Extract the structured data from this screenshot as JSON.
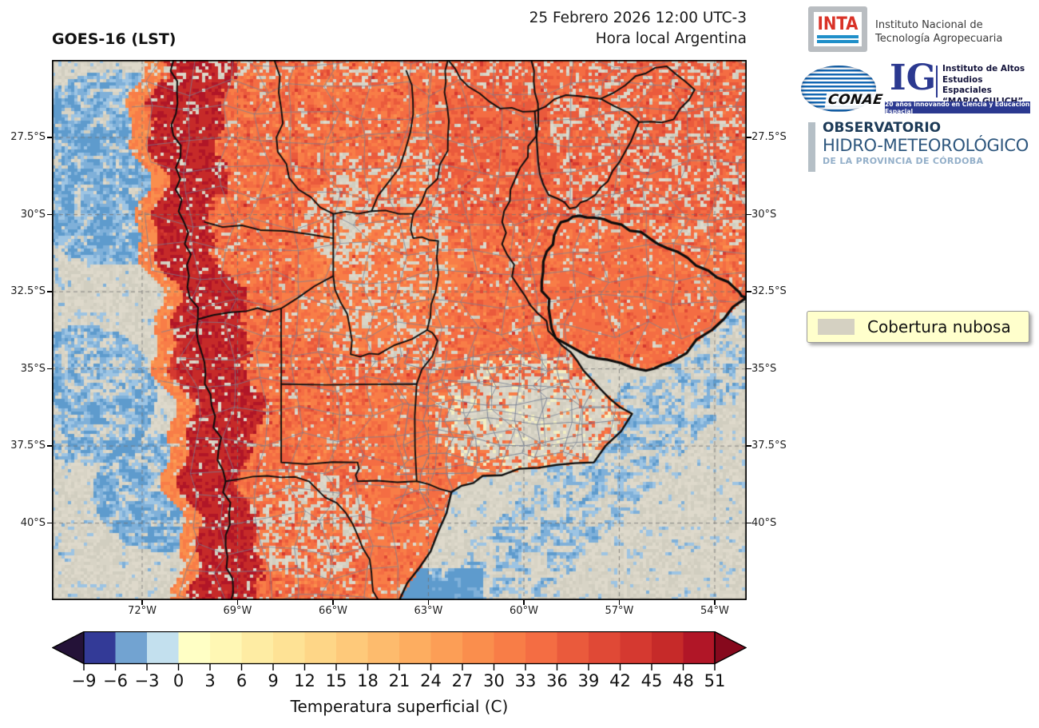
{
  "header": {
    "map_title": "GOES-16 (LST)",
    "datetime_line1": "25 Febrero 2026 12:00 UTC-3",
    "datetime_line2": "Hora local Argentina"
  },
  "axes": {
    "lat_ticks": [
      "27.5°S",
      "30°S",
      "32.5°S",
      "35°S",
      "37.5°S",
      "40°S"
    ],
    "lon_ticks": [
      "72°W",
      "69°W",
      "66°W",
      "63°W",
      "60°W",
      "57°W",
      "54°W"
    ]
  },
  "colorbar": {
    "label": "Temperatura superficial (C)",
    "ticks": [
      "−9",
      "−6",
      "−3",
      "0",
      "3",
      "6",
      "9",
      "12",
      "15",
      "18",
      "21",
      "24",
      "27",
      "30",
      "33",
      "36",
      "39",
      "42",
      "45",
      "48",
      "51"
    ],
    "tick_values": [
      -9,
      -6,
      -3,
      0,
      3,
      6,
      9,
      12,
      15,
      18,
      21,
      24,
      27,
      30,
      33,
      36,
      39,
      42,
      45,
      48,
      51
    ],
    "segment_colors": [
      "#333a97",
      "#72a3d1",
      "#c3e0ee",
      "#ffffc5",
      "#fff7b4",
      "#feeca3",
      "#fee295",
      "#fed687",
      "#fec97a",
      "#fdbb6d",
      "#fdad60",
      "#fc9e56",
      "#fa8e4d",
      "#f87d47",
      "#f46d43",
      "#ea5a3c",
      "#e04936",
      "#d53930",
      "#c62a29",
      "#b11627"
    ],
    "under_color": "#241238",
    "over_color": "#86091d",
    "units": "C",
    "min": -9,
    "max": 51,
    "step": 3
  },
  "legend": {
    "label": "Cobertura nubosa",
    "swatch_color": "#d5d1c2",
    "bg_color": "#ffffcc"
  },
  "logos": {
    "inta": {
      "abbr": "INTA",
      "name_line1": "Instituto Nacional de",
      "name_line2": "Tecnología Agropecuaria"
    },
    "conae": {
      "abbr": "CONAE"
    },
    "ig": {
      "abbr": "IG",
      "line1": "Instituto de Altos",
      "line2": "Estudios Espaciales",
      "line3": "“MARIO GULICH”",
      "banner": "20 años innovando en Ciencia y Educación Espacial"
    },
    "observatorio": {
      "line1": "OBSERVATORIO",
      "line2": "HIDRO-METEOROLÓGICO",
      "line3": "DE LA PROVINCIA DE CÓRDOBA"
    }
  },
  "map": {
    "colors": {
      "cloud_beige": "#d8d4c6",
      "cloud_beige_light": "#ded9cb",
      "cloud_beige_dark": "#d1cec0",
      "cloud_blue_light": "#9dc4e3",
      "cloud_blue_mid": "#7fb0d9",
      "cloud_blue_deep": "#5e9bcd",
      "coast_blue": "#a2c6e0",
      "pale_yellow": "#f3eec3",
      "boundary_black": "#0d0d0d",
      "department_grey": "#76808f",
      "grid_grey": "#7a7a7a"
    }
  }
}
